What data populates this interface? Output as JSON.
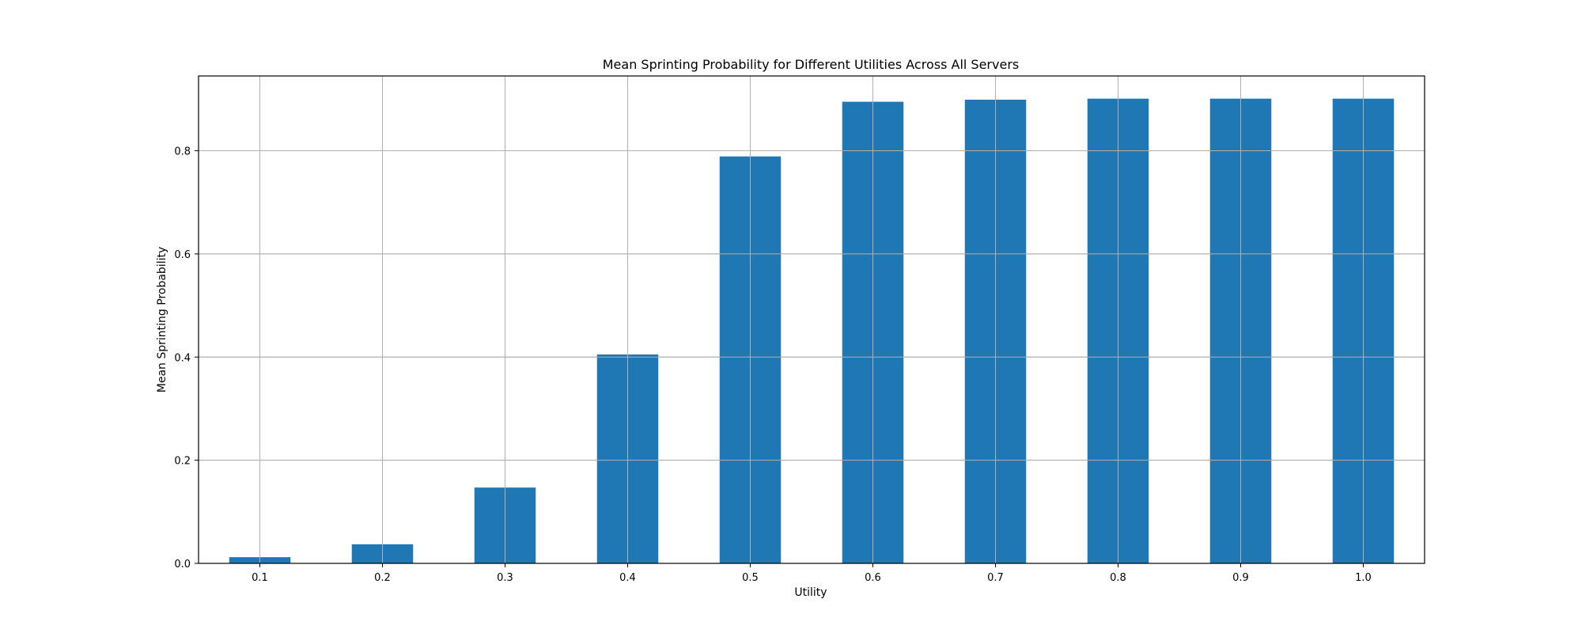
{
  "chart_data": {
    "type": "bar",
    "title": "Mean Sprinting Probability for Different Utilities Across All Servers",
    "xlabel": "Utility",
    "ylabel": "Mean Sprinting Probability",
    "categories": [
      "0.1",
      "0.2",
      "0.3",
      "0.4",
      "0.5",
      "0.6",
      "0.7",
      "0.8",
      "0.9",
      "1.0"
    ],
    "values": [
      0.012,
      0.037,
      0.147,
      0.405,
      0.789,
      0.895,
      0.899,
      0.901,
      0.901,
      0.901
    ],
    "ylim": [
      0,
      0.945
    ],
    "yticks": [
      0.0,
      0.2,
      0.4,
      0.6,
      0.8
    ],
    "ytick_labels": [
      "0.0",
      "0.2",
      "0.4",
      "0.6",
      "0.8"
    ],
    "grid": true,
    "bar_color": "#1f77b4"
  }
}
